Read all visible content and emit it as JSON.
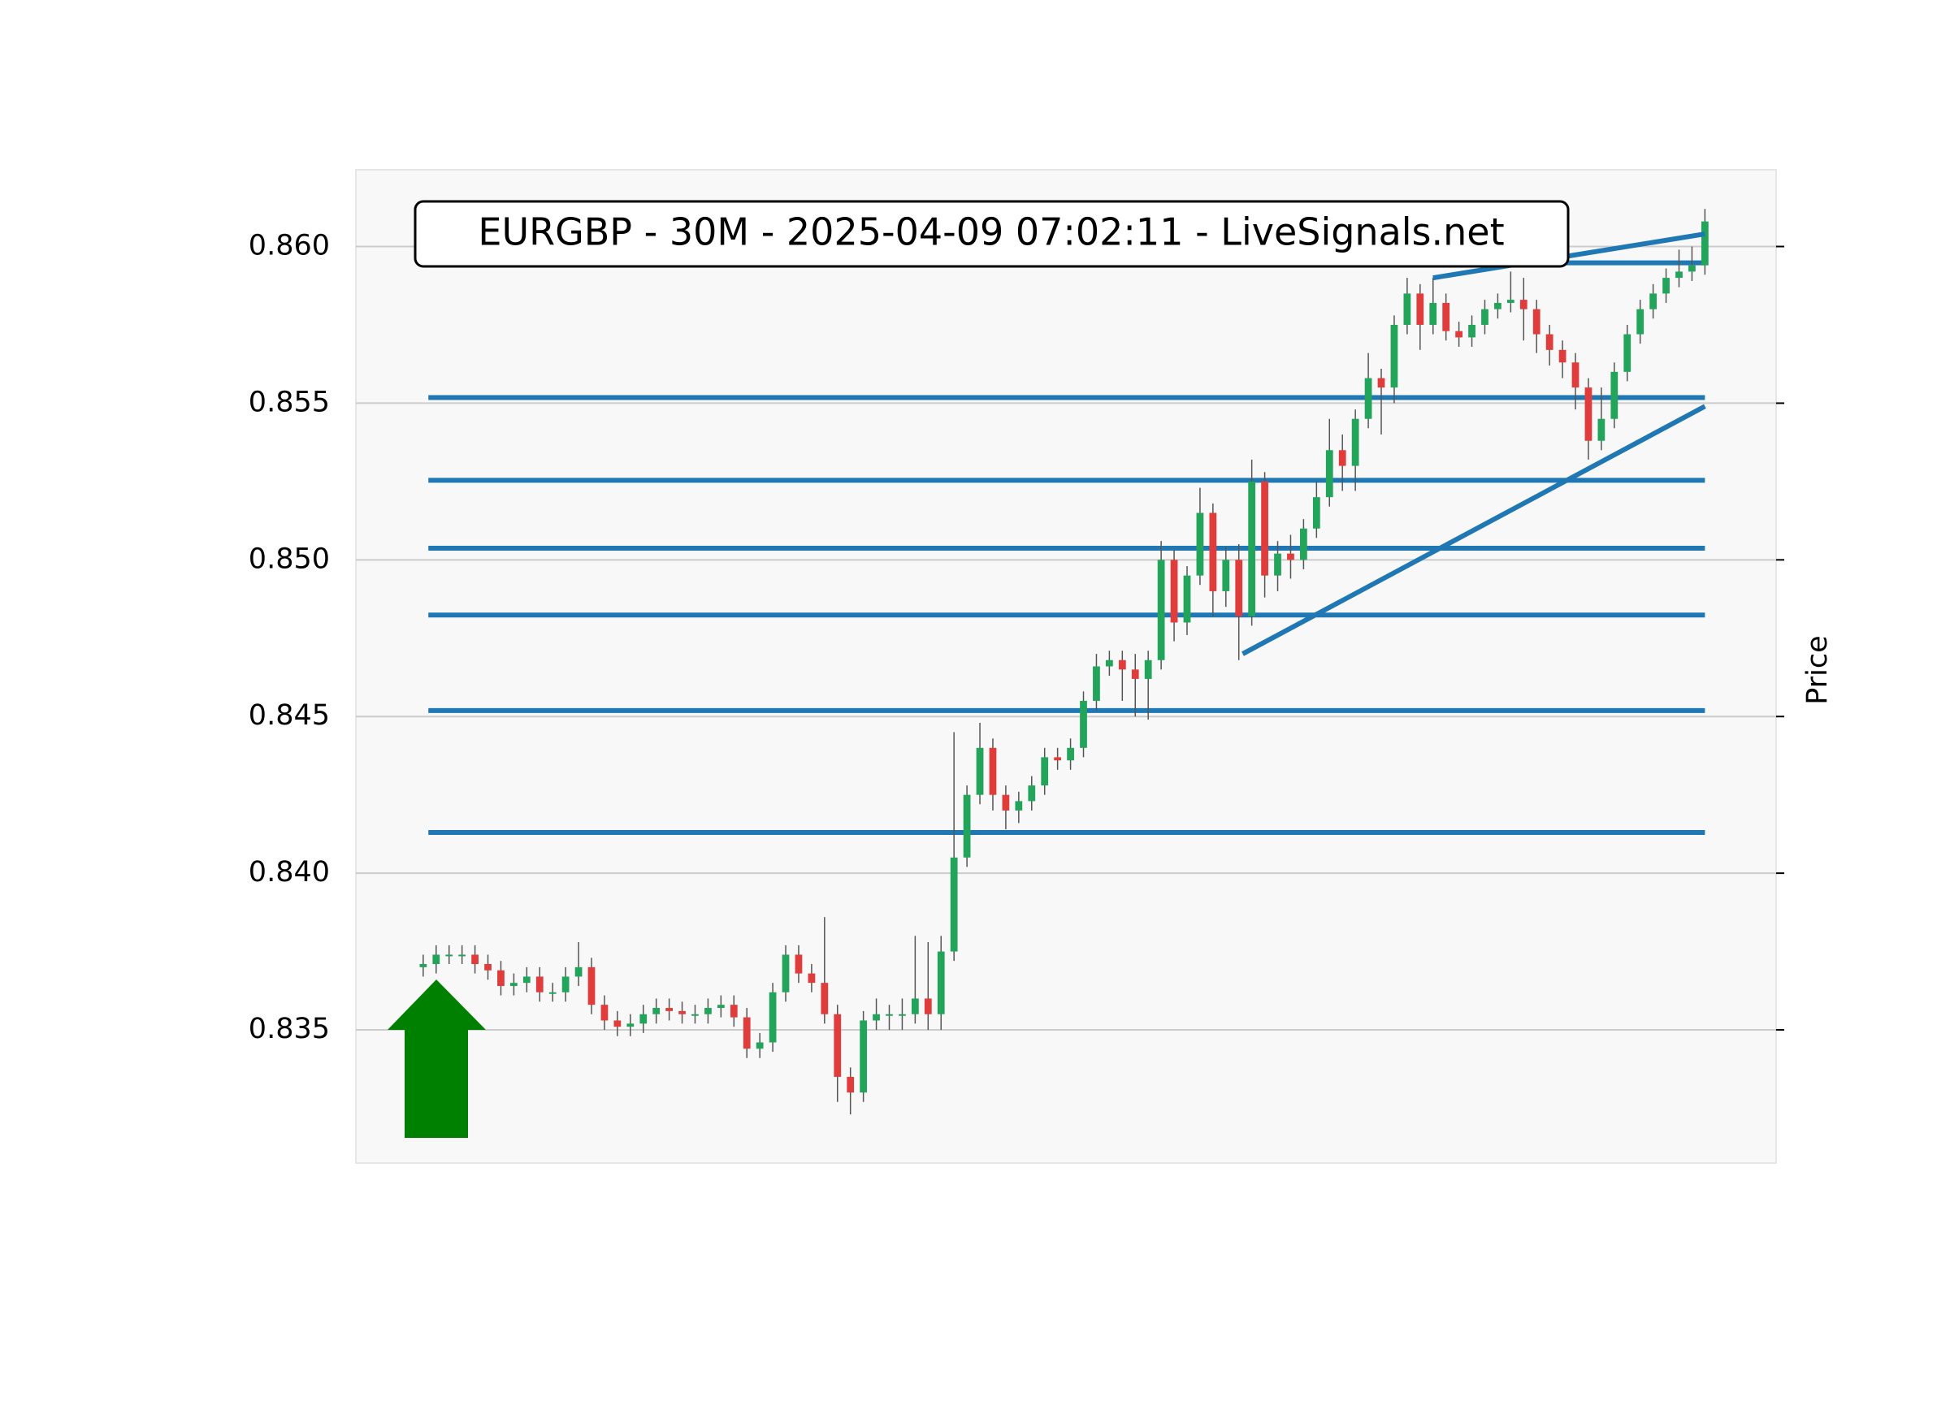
{
  "chart_data": {
    "type": "candlestick",
    "title": "EURGBP - 30M - 2025-04-09 07:02:11 - LiveSignals.net",
    "y_label": "Price",
    "open": [
      0.837,
      0.8371,
      0.8374,
      0.8374,
      0.8374,
      0.8371,
      0.8369,
      0.8364,
      0.8365,
      0.8367,
      0.8362,
      0.8362,
      0.8367,
      0.837,
      0.8358,
      0.8353,
      0.8351,
      0.8352,
      0.8355,
      0.8357,
      0.8356,
      0.8355,
      0.8355,
      0.8357,
      0.8358,
      0.8354,
      0.8344,
      0.8346,
      0.8362,
      0.8374,
      0.8368,
      0.8365,
      0.8355,
      0.8335,
      0.833,
      0.8353,
      0.8355,
      0.8355,
      0.8355,
      0.836,
      0.8355,
      0.8375,
      0.8405,
      0.8425,
      0.844,
      0.8425,
      0.842,
      0.8423,
      0.8428,
      0.8437,
      0.8436,
      0.844,
      0.8455,
      0.8466,
      0.8468,
      0.8465,
      0.8462,
      0.8468,
      0.85,
      0.848,
      0.8495,
      0.8515,
      0.849,
      0.85,
      0.8482,
      0.8525,
      0.8495,
      0.8502,
      0.85,
      0.851,
      0.852,
      0.8535,
      0.853,
      0.8545,
      0.8558,
      0.8555,
      0.8575,
      0.8585,
      0.8575,
      0.8582,
      0.8573,
      0.8571,
      0.8575,
      0.858,
      0.8582,
      0.8583,
      0.858,
      0.8572,
      0.8567,
      0.8563,
      0.8555,
      0.8538,
      0.8545,
      0.856,
      0.8572,
      0.858,
      0.8585,
      0.859,
      0.8592,
      0.8594
    ],
    "high": [
      0.8374,
      0.8377,
      0.8377,
      0.8377,
      0.8377,
      0.8374,
      0.8372,
      0.8368,
      0.837,
      0.837,
      0.8365,
      0.837,
      0.8378,
      0.8373,
      0.8361,
      0.8356,
      0.8355,
      0.8358,
      0.836,
      0.836,
      0.8359,
      0.8358,
      0.836,
      0.8361,
      0.8361,
      0.8357,
      0.8349,
      0.8365,
      0.8377,
      0.8377,
      0.8371,
      0.8386,
      0.8358,
      0.8338,
      0.8356,
      0.836,
      0.8358,
      0.836,
      0.838,
      0.8378,
      0.838,
      0.8445,
      0.8428,
      0.8448,
      0.8443,
      0.8428,
      0.8426,
      0.8431,
      0.844,
      0.844,
      0.8443,
      0.8458,
      0.847,
      0.8471,
      0.8471,
      0.847,
      0.8471,
      0.8506,
      0.8503,
      0.8498,
      0.8523,
      0.8518,
      0.8504,
      0.8505,
      0.8532,
      0.8528,
      0.8506,
      0.8508,
      0.8513,
      0.8525,
      0.8545,
      0.854,
      0.8548,
      0.8566,
      0.8561,
      0.8578,
      0.859,
      0.8588,
      0.859,
      0.8585,
      0.8576,
      0.8578,
      0.8583,
      0.8585,
      0.8592,
      0.859,
      0.8583,
      0.8575,
      0.857,
      0.8566,
      0.8558,
      0.8555,
      0.8563,
      0.8575,
      0.8583,
      0.8588,
      0.8593,
      0.8599,
      0.86,
      0.8612
    ],
    "low": [
      0.8367,
      0.8368,
      0.8371,
      0.8371,
      0.8368,
      0.8366,
      0.8361,
      0.8361,
      0.8362,
      0.8359,
      0.8359,
      0.8359,
      0.8364,
      0.8355,
      0.835,
      0.8348,
      0.8348,
      0.8349,
      0.8352,
      0.8353,
      0.8352,
      0.8352,
      0.8352,
      0.8354,
      0.8351,
      0.8341,
      0.8341,
      0.8343,
      0.8359,
      0.8365,
      0.8362,
      0.8352,
      0.8327,
      0.8323,
      0.8327,
      0.835,
      0.835,
      0.835,
      0.8352,
      0.835,
      0.835,
      0.8372,
      0.8402,
      0.8422,
      0.842,
      0.8414,
      0.8416,
      0.842,
      0.8425,
      0.8433,
      0.8433,
      0.8437,
      0.8452,
      0.8463,
      0.8455,
      0.845,
      0.8449,
      0.8465,
      0.8474,
      0.8476,
      0.8492,
      0.8482,
      0.8485,
      0.8468,
      0.8479,
      0.8488,
      0.849,
      0.8494,
      0.8497,
      0.8507,
      0.8517,
      0.8522,
      0.8522,
      0.8542,
      0.854,
      0.855,
      0.8572,
      0.8567,
      0.8572,
      0.857,
      0.8568,
      0.8568,
      0.8572,
      0.8577,
      0.8579,
      0.857,
      0.8566,
      0.8562,
      0.8558,
      0.8548,
      0.8532,
      0.8535,
      0.8542,
      0.8557,
      0.8569,
      0.8577,
      0.8582,
      0.8587,
      0.8589,
      0.8591
    ],
    "close": [
      0.8371,
      0.8374,
      0.8374,
      0.8374,
      0.8371,
      0.8369,
      0.8364,
      0.8365,
      0.8367,
      0.8362,
      0.8362,
      0.8367,
      0.837,
      0.8358,
      0.8353,
      0.8351,
      0.8352,
      0.8355,
      0.8357,
      0.8356,
      0.8355,
      0.8355,
      0.8357,
      0.8358,
      0.8354,
      0.8344,
      0.8346,
      0.8362,
      0.8374,
      0.8368,
      0.8365,
      0.8355,
      0.8335,
      0.833,
      0.8353,
      0.8355,
      0.8355,
      0.8355,
      0.836,
      0.8355,
      0.8375,
      0.8405,
      0.8425,
      0.844,
      0.8425,
      0.842,
      0.8423,
      0.8428,
      0.8437,
      0.8436,
      0.844,
      0.8455,
      0.8466,
      0.8468,
      0.8465,
      0.8462,
      0.8468,
      0.85,
      0.848,
      0.8495,
      0.8515,
      0.849,
      0.85,
      0.8482,
      0.8525,
      0.8495,
      0.8502,
      0.85,
      0.851,
      0.852,
      0.8535,
      0.853,
      0.8545,
      0.8558,
      0.8555,
      0.8575,
      0.8585,
      0.8575,
      0.8582,
      0.8573,
      0.8571,
      0.8575,
      0.858,
      0.8582,
      0.8583,
      0.858,
      0.8572,
      0.8567,
      0.8563,
      0.8555,
      0.8538,
      0.8545,
      0.856,
      0.8572,
      0.858,
      0.8585,
      0.859,
      0.8592,
      0.8594,
      0.8608
    ],
    "up_color": "#22a55b",
    "down_color": "#e03c3c",
    "line_color": "#1f77b4",
    "grid": true,
    "xlim": [
      -5.2,
      104.5
    ],
    "ylim": [
      0.83075,
      0.86245
    ],
    "yticks": [
      0.835,
      {
        "value": 0.84,
        "label": "0.840"
      },
      0.845,
      {
        "value": 0.85,
        "label": "0.850"
      },
      0.855,
      {
        "value": 0.86,
        "label": "0.860"
      }
    ],
    "levels": [
      {
        "value": 0.85518,
        "x": [
          0.4,
          99
        ]
      },
      {
        "value": 0.85254,
        "x": [
          0.4,
          99
        ]
      },
      {
        "value": 0.85037,
        "x": [
          0.4,
          99
        ]
      },
      {
        "value": 0.84824,
        "x": [
          0.4,
          99
        ]
      },
      {
        "value": 0.84519,
        "x": [
          0.4,
          99
        ]
      },
      {
        "value": 0.8413,
        "x": [
          0.4,
          99
        ]
      },
      {
        "value": 0.85948,
        "x": [
          85.6,
          99
        ]
      }
    ],
    "trendlines": [
      {
        "x": [
          63.3,
          99
        ],
        "y": [
          0.847,
          0.8549
        ]
      },
      {
        "x": [
          78,
          99
        ],
        "y": [
          0.859,
          0.8604
        ]
      }
    ]
  }
}
